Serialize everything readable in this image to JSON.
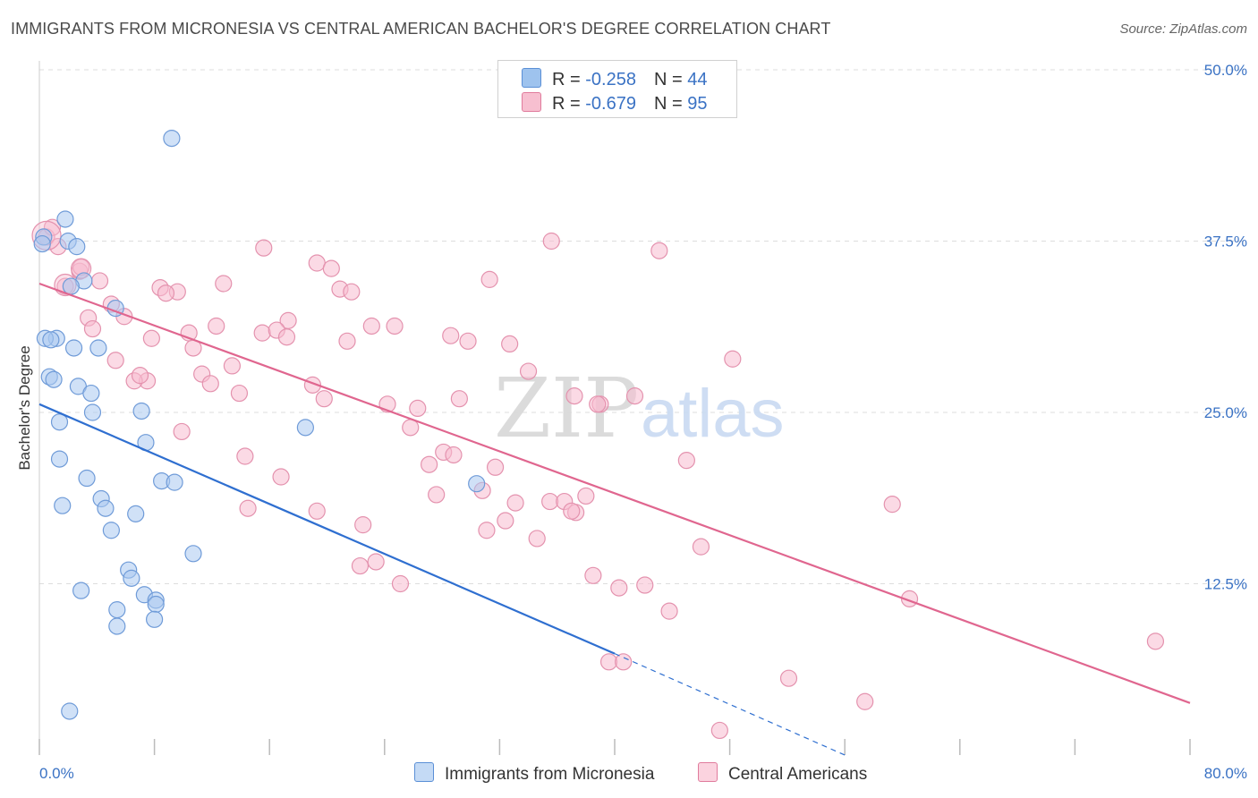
{
  "title": "IMMIGRANTS FROM MICRONESIA VS CENTRAL AMERICAN BACHELOR'S DEGREE CORRELATION CHART",
  "source": "Source: ZipAtlas.com",
  "watermark": {
    "zip": "ZIP",
    "atlas": "atlas"
  },
  "legend": {
    "rows": [
      {
        "r_label": "R = ",
        "r_value": "-0.258",
        "n_label": "N = ",
        "n_value": "44",
        "color": "#9ec3ee",
        "border": "#5a8fd6"
      },
      {
        "r_label": "R = ",
        "r_value": "-0.679",
        "n_label": "N = ",
        "n_value": "95",
        "color": "#f7bfd0",
        "border": "#e07b9c"
      }
    ]
  },
  "bottom_legend": [
    {
      "label": "Immigrants from Micronesia",
      "color": "#c4daf5",
      "border": "#5a8fd6"
    },
    {
      "label": "Central Americans",
      "color": "#fbd3df",
      "border": "#e07b9c"
    }
  ],
  "colors": {
    "blue_line": "#2f6fd0",
    "pink_line": "#e0668f",
    "blue_fill": "#a9c9f0",
    "pink_fill": "#f7bcd0",
    "grid": "#dddddd",
    "tick_label": "#3a72c4"
  },
  "chart_data": {
    "type": "scatter",
    "xlabel": "",
    "ylabel": "Bachelor's Degree",
    "xlim": [
      0,
      80
    ],
    "ylim": [
      0,
      50
    ],
    "x_tick_labels": [
      "0.0%",
      "80.0%"
    ],
    "y_tick_labels": [
      "12.5%",
      "25.0%",
      "37.5%",
      "50.0%"
    ],
    "y_ticks": [
      12.5,
      25,
      37.5,
      50
    ],
    "grid": true,
    "legend_position": "top-center",
    "series": [
      {
        "name": "Immigrants from Micronesia",
        "trend": {
          "x": [
            0,
            40
          ],
          "y": [
            25.6,
            7.4
          ],
          "dashed_to": [
            56,
            0
          ]
        },
        "points": [
          [
            0.3,
            37.8
          ],
          [
            2.0,
            37.5
          ],
          [
            1.8,
            39.1
          ],
          [
            2.6,
            37.1
          ],
          [
            9.2,
            45.0
          ],
          [
            3.1,
            34.6
          ],
          [
            2.2,
            34.2
          ],
          [
            5.3,
            32.6
          ],
          [
            1.2,
            30.4
          ],
          [
            0.4,
            30.4
          ],
          [
            2.4,
            29.7
          ],
          [
            4.1,
            29.7
          ],
          [
            0.7,
            27.6
          ],
          [
            1.0,
            27.4
          ],
          [
            2.7,
            26.9
          ],
          [
            3.6,
            26.4
          ],
          [
            1.4,
            24.3
          ],
          [
            3.7,
            25.0
          ],
          [
            7.1,
            25.1
          ],
          [
            18.5,
            23.9
          ],
          [
            7.4,
            22.8
          ],
          [
            1.4,
            21.6
          ],
          [
            3.3,
            20.2
          ],
          [
            8.5,
            20.0
          ],
          [
            9.4,
            19.9
          ],
          [
            30.4,
            19.8
          ],
          [
            4.3,
            18.7
          ],
          [
            4.6,
            18.0
          ],
          [
            1.6,
            18.2
          ],
          [
            6.7,
            17.6
          ],
          [
            5.0,
            16.4
          ],
          [
            10.7,
            14.7
          ],
          [
            6.2,
            13.5
          ],
          [
            6.4,
            12.9
          ],
          [
            2.9,
            12.0
          ],
          [
            7.3,
            11.7
          ],
          [
            8.1,
            11.3
          ],
          [
            8.1,
            11.0
          ],
          [
            5.4,
            10.6
          ],
          [
            8.0,
            9.9
          ],
          [
            5.4,
            9.4
          ],
          [
            2.1,
            3.2
          ],
          [
            0.2,
            37.3
          ],
          [
            0.8,
            30.3
          ]
        ]
      },
      {
        "name": "Central Americans",
        "trend": {
          "x": [
            0,
            80
          ],
          "y": [
            34.4,
            3.8
          ]
        },
        "points": [
          [
            0.5,
            37.8
          ],
          [
            0.9,
            38.5
          ],
          [
            1.3,
            37.1
          ],
          [
            2.8,
            35.3
          ],
          [
            2.9,
            35.6
          ],
          [
            1.8,
            34.2
          ],
          [
            4.2,
            34.6
          ],
          [
            15.6,
            37.0
          ],
          [
            35.6,
            37.5
          ],
          [
            43.1,
            36.8
          ],
          [
            19.3,
            35.9
          ],
          [
            20.3,
            35.5
          ],
          [
            31.3,
            34.7
          ],
          [
            12.8,
            34.4
          ],
          [
            8.4,
            34.1
          ],
          [
            9.6,
            33.8
          ],
          [
            8.8,
            33.7
          ],
          [
            20.9,
            34.0
          ],
          [
            21.7,
            33.8
          ],
          [
            5.0,
            32.9
          ],
          [
            5.9,
            32.0
          ],
          [
            3.4,
            31.9
          ],
          [
            3.7,
            31.1
          ],
          [
            17.3,
            31.7
          ],
          [
            12.3,
            31.3
          ],
          [
            15.5,
            30.8
          ],
          [
            16.5,
            31.0
          ],
          [
            17.2,
            30.5
          ],
          [
            23.1,
            31.3
          ],
          [
            24.7,
            31.3
          ],
          [
            10.4,
            30.8
          ],
          [
            7.8,
            30.4
          ],
          [
            21.4,
            30.2
          ],
          [
            28.6,
            30.6
          ],
          [
            29.8,
            30.2
          ],
          [
            32.7,
            30.0
          ],
          [
            10.7,
            29.7
          ],
          [
            5.3,
            28.8
          ],
          [
            48.2,
            28.9
          ],
          [
            13.4,
            28.4
          ],
          [
            11.3,
            27.8
          ],
          [
            7.5,
            27.3
          ],
          [
            6.6,
            27.3
          ],
          [
            7.0,
            27.7
          ],
          [
            11.9,
            27.1
          ],
          [
            19.0,
            27.0
          ],
          [
            34.0,
            28.0
          ],
          [
            13.9,
            26.4
          ],
          [
            19.8,
            26.0
          ],
          [
            24.2,
            25.6
          ],
          [
            29.2,
            26.0
          ],
          [
            37.2,
            26.2
          ],
          [
            39.0,
            25.6
          ],
          [
            41.4,
            26.2
          ],
          [
            38.8,
            25.6
          ],
          [
            26.3,
            25.3
          ],
          [
            25.8,
            23.9
          ],
          [
            9.9,
            23.6
          ],
          [
            28.1,
            22.1
          ],
          [
            28.8,
            21.9
          ],
          [
            14.3,
            21.8
          ],
          [
            27.1,
            21.2
          ],
          [
            45.0,
            21.5
          ],
          [
            31.7,
            21.0
          ],
          [
            16.8,
            20.3
          ],
          [
            30.8,
            19.3
          ],
          [
            27.6,
            19.0
          ],
          [
            38.0,
            18.9
          ],
          [
            35.5,
            18.5
          ],
          [
            33.1,
            18.4
          ],
          [
            36.5,
            18.5
          ],
          [
            59.3,
            18.3
          ],
          [
            14.5,
            18.0
          ],
          [
            19.3,
            17.8
          ],
          [
            37.3,
            17.7
          ],
          [
            37.0,
            17.8
          ],
          [
            32.4,
            17.1
          ],
          [
            22.5,
            16.8
          ],
          [
            31.1,
            16.4
          ],
          [
            34.6,
            15.8
          ],
          [
            46.0,
            15.2
          ],
          [
            23.4,
            14.1
          ],
          [
            22.3,
            13.8
          ],
          [
            38.5,
            13.1
          ],
          [
            25.1,
            12.5
          ],
          [
            40.3,
            12.2
          ],
          [
            42.1,
            12.4
          ],
          [
            60.5,
            11.4
          ],
          [
            43.8,
            10.5
          ],
          [
            77.6,
            8.3
          ],
          [
            39.6,
            6.8
          ],
          [
            40.6,
            6.8
          ],
          [
            52.1,
            5.6
          ],
          [
            57.4,
            3.9
          ],
          [
            47.3,
            1.8
          ]
        ]
      }
    ]
  }
}
